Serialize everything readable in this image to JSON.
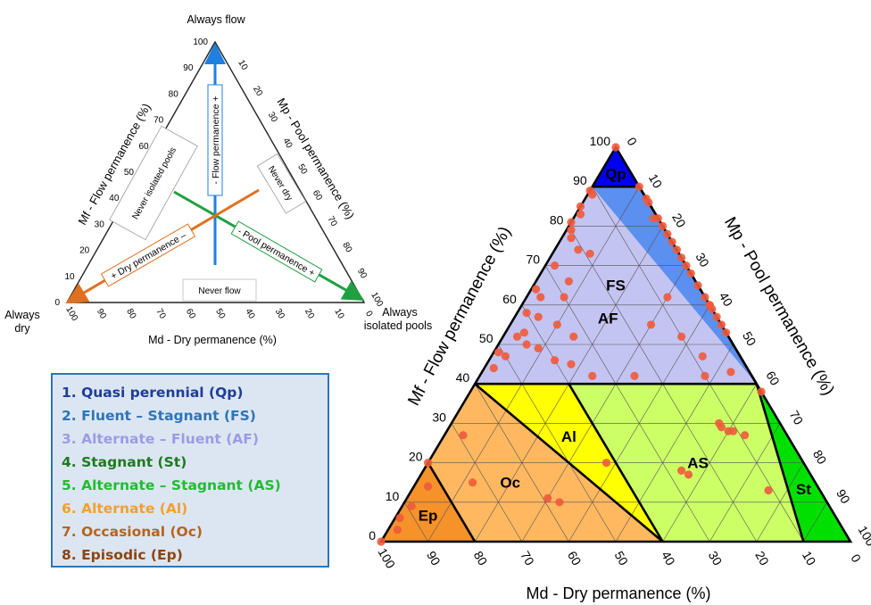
{
  "small_diagram": {
    "corner_top": "Always flow",
    "corner_left": "Always dry",
    "corner_right": "Always isolated pools",
    "axis_left": "Mf - Flow permanence (%)",
    "axis_right": "Mp - Pool permanence (%)",
    "axis_bottom": "Md - Dry permanence (%)",
    "left_ticks": [
      "0",
      "10",
      "20",
      "30",
      "40",
      "50",
      "60",
      "70",
      "80",
      "90",
      "100"
    ],
    "right_ticks": [
      "10",
      "20",
      "30",
      "40",
      "50",
      "60",
      "70",
      "80",
      "90",
      "100"
    ],
    "bottom_ticks": [
      "100",
      "90",
      "80",
      "70",
      "60",
      "50",
      "40",
      "30",
      "20",
      "10",
      "0"
    ],
    "arrow_flow": "- Flow permanence +",
    "arrow_dry": "+ Dry permanence –",
    "arrow_pool": "- Pool permanence +",
    "box_never_isolated": "Never isolated pools",
    "box_never_dry": "Never dry",
    "box_never_flow": "Never flow",
    "colors": {
      "flow_arrow": "#1f7fe0",
      "dry_arrow": "#e07020",
      "pool_arrow": "#20a040"
    }
  },
  "legend": [
    {
      "label": "1. Quasi perennial (Qp)",
      "color": "#1f3c99"
    },
    {
      "label": "2. Fluent – Stagnant (FS)",
      "color": "#2e75b6"
    },
    {
      "label": "3. Alternate – Fluent (AF)",
      "color": "#9b9be6"
    },
    {
      "label": "4. Stagnant (St)",
      "color": "#1e7a1e"
    },
    {
      "label": "5. Alternate – Stagnant (AS)",
      "color": "#22bb33"
    },
    {
      "label": "6. Alternate (Al)",
      "color": "#f0a030"
    },
    {
      "label": "7. Occasional (Oc)",
      "color": "#b5651d"
    },
    {
      "label": "8. Episodic (Ep)",
      "color": "#8b4513"
    }
  ],
  "chart_data": {
    "type": "ternary",
    "axis_left": "Mf - Flow permanence (%)",
    "axis_right": "Mp - Pool permanence (%)",
    "axis_bottom": "Md - Dry permanence (%)",
    "left_ticks": [
      "0",
      "10",
      "20",
      "30",
      "40",
      "50",
      "60",
      "70",
      "80",
      "90",
      "100"
    ],
    "right_ticks": [
      "0",
      "10",
      "20",
      "30",
      "40",
      "50",
      "60",
      "70",
      "80",
      "90",
      "100"
    ],
    "bottom_ticks": [
      "100",
      "90",
      "80",
      "70",
      "60",
      "50",
      "40",
      "30",
      "20",
      "10",
      "0"
    ],
    "regions": [
      {
        "label": "Qp",
        "color": "#0000ee",
        "vertices": [
          [
            100,
            0
          ],
          [
            90,
            10
          ],
          [
            90,
            0
          ]
        ]
      },
      {
        "label": "FS",
        "color": "#5b8ff0",
        "vertices": [
          [
            90,
            0
          ],
          [
            90,
            10
          ],
          [
            40,
            60
          ],
          [
            40,
            0
          ]
        ]
      },
      {
        "label": "AF",
        "color": "#c4c4f2",
        "vertices": [
          [
            90,
            0
          ],
          [
            40,
            0
          ],
          [
            40,
            60
          ]
        ]
      },
      {
        "label": "St",
        "color": "#00e000",
        "vertices": [
          [
            40,
            60
          ],
          [
            0,
            100
          ],
          [
            0,
            90
          ]
        ]
      },
      {
        "label": "AS",
        "color": "#ccff66",
        "vertices": [
          [
            40,
            60
          ],
          [
            40,
            20
          ],
          [
            0,
            60
          ],
          [
            0,
            90
          ]
        ]
      },
      {
        "label": "Al",
        "color": "#ffff00",
        "vertices": [
          [
            40,
            0
          ],
          [
            40,
            20
          ],
          [
            0,
            60
          ]
        ]
      },
      {
        "label": "Oc",
        "color": "#ffb860",
        "vertices": [
          [
            40,
            0
          ],
          [
            0,
            60
          ],
          [
            0,
            20
          ],
          [
            20,
            0
          ]
        ]
      },
      {
        "label": "Ep",
        "color": "#f5922a",
        "vertices": [
          [
            20,
            0
          ],
          [
            0,
            20
          ],
          [
            0,
            0
          ]
        ]
      }
    ],
    "points_mf_mp": [
      [
        100,
        0
      ],
      [
        90,
        10
      ],
      [
        87,
        13
      ],
      [
        86,
        14
      ],
      [
        82,
        18
      ],
      [
        82,
        17
      ],
      [
        80,
        20
      ],
      [
        78,
        22
      ],
      [
        76,
        24
      ],
      [
        74,
        26
      ],
      [
        72,
        28
      ],
      [
        70,
        30
      ],
      [
        68,
        32
      ],
      [
        65,
        35
      ],
      [
        62,
        38
      ],
      [
        60,
        40
      ],
      [
        59,
        41
      ],
      [
        57,
        43
      ],
      [
        55,
        45
      ],
      [
        53,
        47
      ],
      [
        89,
        0
      ],
      [
        88,
        1
      ],
      [
        85,
        0
      ],
      [
        83,
        1
      ],
      [
        81,
        0
      ],
      [
        79,
        1
      ],
      [
        77,
        2
      ],
      [
        74,
        5
      ],
      [
        73,
        8
      ],
      [
        70,
        2
      ],
      [
        66,
        7
      ],
      [
        64,
        1
      ],
      [
        62,
        3
      ],
      [
        62,
        8
      ],
      [
        58,
        2
      ],
      [
        57,
        5
      ],
      [
        55,
        10
      ],
      [
        53,
        4
      ],
      [
        52,
        3
      ],
      [
        52,
        15
      ],
      [
        50,
        6
      ],
      [
        49,
        9
      ],
      [
        48,
        1
      ],
      [
        47,
        3
      ],
      [
        46,
        14
      ],
      [
        45,
        18
      ],
      [
        44,
        2
      ],
      [
        42,
        24
      ],
      [
        42,
        33
      ],
      [
        62,
        30
      ],
      [
        60,
        40
      ],
      [
        55,
        30
      ],
      [
        52,
        38
      ],
      [
        47,
        45
      ],
      [
        43,
        53
      ],
      [
        42,
        48
      ],
      [
        38,
        62
      ],
      [
        30,
        57
      ],
      [
        28,
        60
      ],
      [
        29,
        58
      ],
      [
        28,
        61
      ],
      [
        27,
        64
      ],
      [
        27,
        4
      ],
      [
        20,
        0
      ],
      [
        20,
        38
      ],
      [
        18,
        55
      ],
      [
        17,
        57
      ],
      [
        15,
        12
      ],
      [
        14,
        3
      ],
      [
        13,
        76
      ],
      [
        11,
        30
      ],
      [
        10,
        33
      ],
      [
        9,
        2
      ],
      [
        6,
        1
      ],
      [
        0,
        0
      ],
      [
        3,
        2
      ]
    ]
  }
}
